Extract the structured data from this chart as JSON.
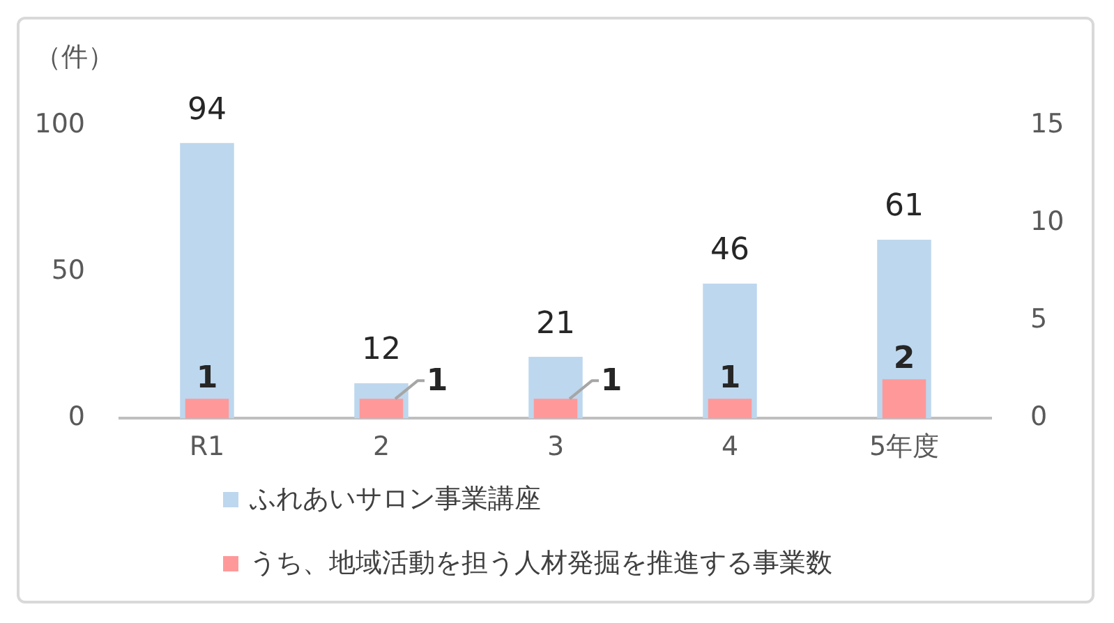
{
  "chart_data": {
    "type": "bar",
    "ylabel": "（件）",
    "categories": [
      "R1",
      "2",
      "3",
      "4",
      "5年度"
    ],
    "series": [
      {
        "name": "ふれあいサロン事業講座",
        "color": "#bdd7ee",
        "values": [
          94,
          12,
          21,
          46,
          61
        ]
      },
      {
        "name": "うち、地域活動を担う人材発掘を推進する事業数",
        "color": "#ff9999",
        "axis": "y2",
        "values": [
          1,
          1,
          1,
          1,
          2
        ]
      }
    ],
    "ylim": [
      0,
      100
    ],
    "yticks": [
      0,
      50,
      100
    ],
    "y2lim": [
      0,
      15
    ],
    "y2ticks": [
      0,
      5,
      10,
      15
    ],
    "grid": false,
    "legend": "bottom",
    "data_labels": true
  }
}
